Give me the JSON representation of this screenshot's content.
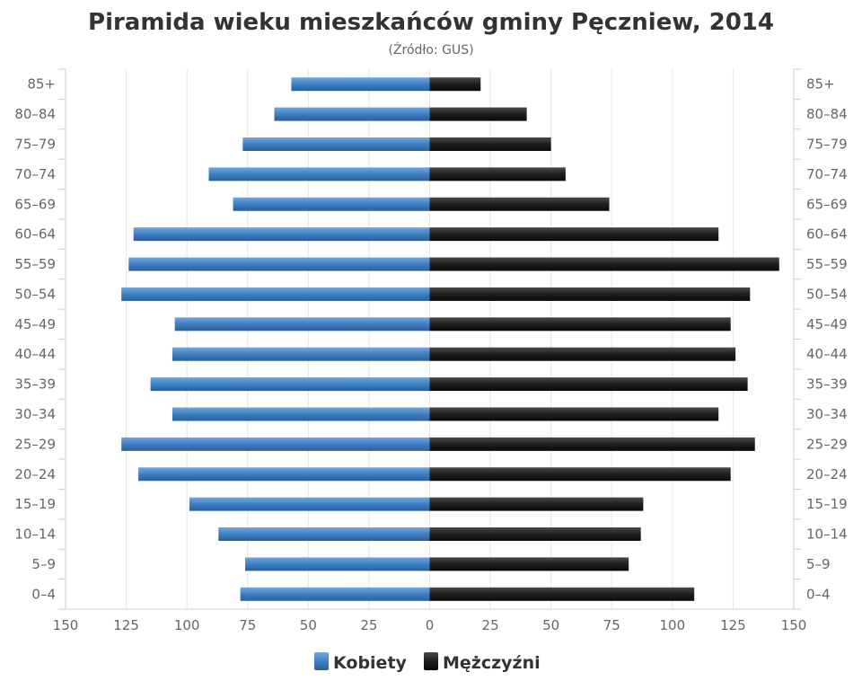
{
  "colors": {
    "female": "#4a87c8",
    "female_dark": "#2a5f9a",
    "male": "#1f1f1f",
    "male_light": "#555555",
    "grid": "#e6e6e6",
    "axis": "#c0d0e0"
  },
  "chart_data": {
    "type": "bar",
    "orientation": "horizontal-pyramid",
    "title": "Piramida wieku mieszkańców gminy Pęczniew, 2014",
    "subtitle": "(Źródło: GUS)",
    "categories": [
      "85+",
      "80–84",
      "75–79",
      "70–74",
      "65–69",
      "60–64",
      "55–59",
      "50–54",
      "45–49",
      "40–44",
      "35–39",
      "30–34",
      "25–29",
      "20–24",
      "15–19",
      "10–14",
      "5–9",
      "0–4"
    ],
    "series": [
      {
        "name": "Kobiety",
        "values": [
          57,
          64,
          77,
          91,
          81,
          122,
          124,
          127,
          105,
          106,
          115,
          106,
          127,
          120,
          99,
          87,
          76,
          78
        ]
      },
      {
        "name": "Mężczyźni",
        "values": [
          21,
          40,
          50,
          56,
          74,
          119,
          144,
          132,
          124,
          126,
          131,
          119,
          134,
          124,
          88,
          87,
          82,
          109
        ]
      }
    ],
    "xlim": [
      -150,
      150
    ],
    "x_ticks": [
      "150",
      "125",
      "100",
      "75",
      "50",
      "25",
      "0",
      "25",
      "50",
      "75",
      "100",
      "125",
      "150"
    ],
    "grid": true,
    "legend": "bottom-center"
  }
}
